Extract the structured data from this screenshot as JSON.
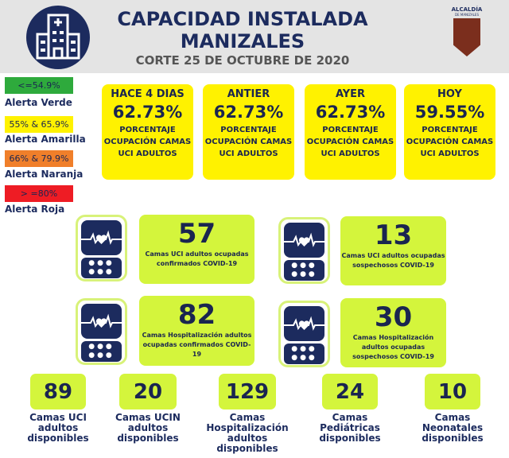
{
  "header": {
    "title_line1": "CAPACIDAD INSTALADA",
    "title_line2": "MANIZALES",
    "corte": "CORTE  25 DE OCTUBRE DE 2020",
    "logo_text": "ALCALDÍA",
    "logo_sub": "DE MANIZALES",
    "icon": "hospital-icon"
  },
  "legend": [
    {
      "range": "<=54.9%",
      "label": "Alerta Verde",
      "color": "#2eaa3c"
    },
    {
      "range": "55% & 65.9%",
      "label": "Alerta Amarilla",
      "color": "#fff200"
    },
    {
      "range": "66% & 79.9%",
      "label": "Alerta Naranja",
      "color": "#f07f2a"
    },
    {
      "range": "> =80%",
      "label": "Alerta Roja",
      "color": "#ee1c24"
    }
  ],
  "occupancy": [
    {
      "period": "HACE 4 DIAS",
      "value": "62.73%",
      "desc": "PORCENTAJE OCUPACIÓN CAMAS UCI ADULTOS"
    },
    {
      "period": "ANTIER",
      "value": "62.73%",
      "desc": "PORCENTAJE OCUPACIÓN CAMAS UCI ADULTOS"
    },
    {
      "period": "AYER",
      "value": "62.73%",
      "desc": "PORCENTAJE OCUPACIÓN CAMAS UCI ADULTOS"
    },
    {
      "period": "HOY",
      "value": "59.55%",
      "desc": "PORCENTAJE OCUPACIÓN CAMAS UCI ADULTOS"
    }
  ],
  "stats": [
    {
      "value": "57",
      "desc": "Camas UCI adultos ocupadas confirmados COVID-19"
    },
    {
      "value": "13",
      "desc": "Camas UCI adultos ocupadas sospechosos COVID-19"
    },
    {
      "value": "82",
      "desc": "Camas  Hospitalización adultos ocupadas confirmados COVID-19"
    },
    {
      "value": "30",
      "desc": "Camas  Hospitalización adultos ocupadas sospechosos COVID-19"
    }
  ],
  "available": [
    {
      "value": "89",
      "label": "Camas UCI adultos disponibles"
    },
    {
      "value": "20",
      "label": "Camas UCIN adultos disponibles"
    },
    {
      "value": "129",
      "label": "Camas Hospitalización adultos disponibles"
    },
    {
      "value": "24",
      "label": "Camas Pediátricas disponibles"
    },
    {
      "value": "10",
      "label": "Camas Neonatales disponibles"
    }
  ]
}
